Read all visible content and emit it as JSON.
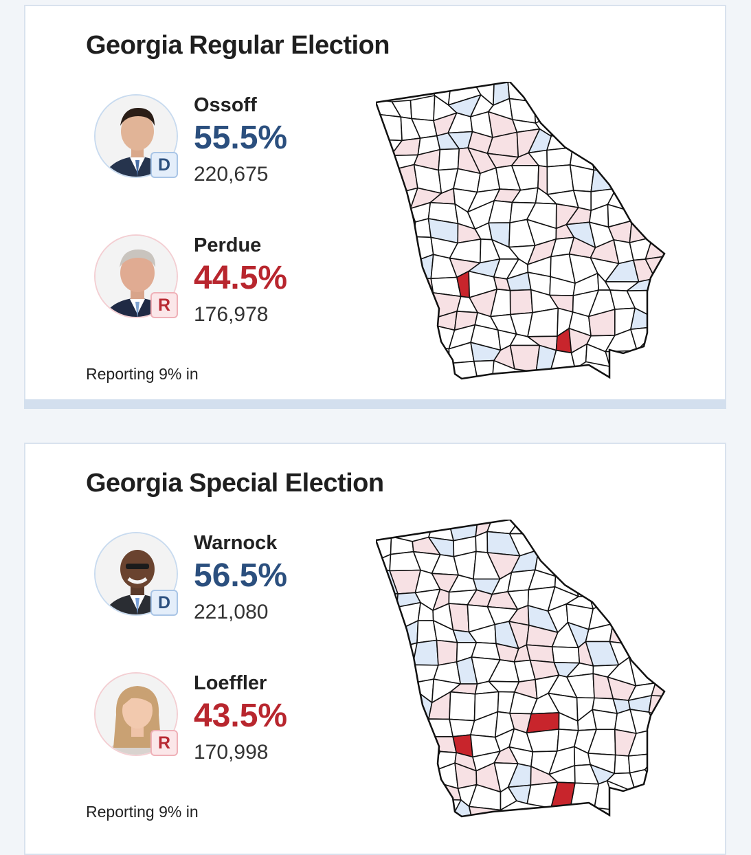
{
  "races": [
    {
      "title": "Georgia Regular Election",
      "candidates": [
        {
          "name": "Ossoff",
          "party": "D",
          "pct": "55.5%",
          "votes": "220,675",
          "party_color": "#2b4f7e"
        },
        {
          "name": "Perdue",
          "party": "R",
          "pct": "44.5%",
          "votes": "176,978",
          "party_color": "#b8262e"
        }
      ],
      "reporting": "Reporting 9% in"
    },
    {
      "title": "Georgia Special Election",
      "candidates": [
        {
          "name": "Warnock",
          "party": "D",
          "pct": "56.5%",
          "votes": "221,080",
          "party_color": "#2b4f7e"
        },
        {
          "name": "Loeffler",
          "party": "R",
          "pct": "43.5%",
          "votes": "170,998",
          "party_color": "#b8262e"
        }
      ],
      "reporting": "Reporting 9% in"
    }
  ],
  "map_colors": {
    "dem_light": "#dde9f8",
    "rep_light": "#f7e1e4",
    "rep_strong": "#c8252c",
    "neutral": "#ffffff"
  }
}
